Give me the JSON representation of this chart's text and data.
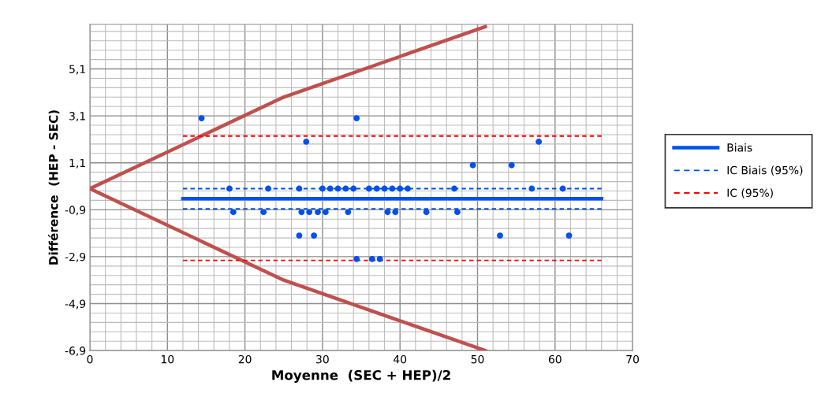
{
  "chart_data": {
    "type": "scatter",
    "xlabel": "Moyenne  (SEC + HEP)/2",
    "ylabel": "Différence  (HEP - SEC)",
    "xlim": [
      0,
      70
    ],
    "xticks": [
      0,
      10,
      20,
      30,
      40,
      50,
      60,
      70
    ],
    "ylim": [
      -6.9,
      7.0
    ],
    "yticks": [
      {
        "value": -6.9,
        "label": "-6,9"
      },
      {
        "value": -4.9,
        "label": "-4,9"
      },
      {
        "value": -2.9,
        "label": "-2,9"
      },
      {
        "value": -0.9,
        "label": "-0,9"
      },
      {
        "value": 1.1,
        "label": "1,1"
      },
      {
        "value": 3.1,
        "label": "3,1"
      },
      {
        "value": 5.1,
        "label": "5,1"
      }
    ],
    "grid": true,
    "legend": "right",
    "series": [
      {
        "type": "line",
        "color": "#c0504d",
        "line_style": "solid",
        "marker": "none",
        "x": [
          0,
          25,
          51
        ],
        "values": [
          0,
          3.9,
          6.9
        ]
      },
      {
        "type": "line",
        "color": "#c0504d",
        "line_style": "solid",
        "marker": "none",
        "x": [
          0,
          25,
          51
        ],
        "values": [
          0,
          -3.9,
          -6.9
        ]
      },
      {
        "color": "#0050ee",
        "marker": "circle",
        "x": [
          14.4,
          34.4,
          27.9,
          57.9,
          49.4,
          54.4,
          18,
          23,
          27,
          30,
          31,
          32,
          33,
          34,
          36,
          37,
          38,
          39,
          40,
          41,
          47,
          57,
          61,
          18.5,
          22.4,
          27.3,
          28.3,
          29.4,
          30.4,
          33.3,
          38.4,
          39.4,
          43.4,
          47.4,
          27,
          28.9,
          52.9,
          61.8,
          34.4,
          36.4,
          37.4
        ],
        "values": [
          3,
          3,
          2,
          2,
          1,
          1,
          0,
          0,
          0,
          0,
          0,
          0,
          0,
          0,
          0,
          0,
          0,
          0,
          0,
          0,
          0,
          0,
          0,
          -1,
          -1,
          -1,
          -1,
          -1,
          -1,
          -1,
          -1,
          -1,
          -1,
          -1,
          -2,
          -2,
          -2,
          -2,
          -3,
          -3,
          -3
        ]
      },
      {
        "type": "line",
        "name": "Biais",
        "color": "#0050ee",
        "line_style": "solid",
        "marker": "none",
        "x": [
          12,
          66
        ],
        "values": [
          -0.43,
          -0.43
        ]
      },
      {
        "type": "line",
        "name": "IC Biais (95%)",
        "color": "#0050ee",
        "line_style": "dashed",
        "marker": "none",
        "x": [
          12,
          66
        ],
        "values": [
          0.0,
          0.0
        ]
      },
      {
        "type": "line",
        "color": "#0050ee",
        "line_style": "dashed",
        "marker": "none",
        "x": [
          12,
          66
        ],
        "values": [
          -0.86,
          -0.86
        ]
      },
      {
        "type": "line",
        "name": "IC (95%)",
        "color": "#ff0000",
        "line_style": "dashed",
        "marker": "none",
        "x": [
          12,
          66
        ],
        "values": [
          2.24,
          2.24
        ]
      },
      {
        "type": "line",
        "color": "#ff0000",
        "line_style": "dashed",
        "marker": "none",
        "x": [
          12,
          66
        ],
        "values": [
          -3.06,
          -3.06
        ]
      }
    ]
  }
}
